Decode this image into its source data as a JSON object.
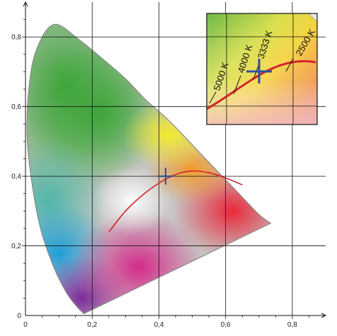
{
  "chart_data": {
    "type": "scatter",
    "title": "",
    "xlabel": "",
    "ylabel": "",
    "xlim": [
      0,
      0.9
    ],
    "ylim": [
      0,
      0.9
    ],
    "grid": true,
    "x_ticks": [
      {
        "value": 0,
        "label": "0"
      },
      {
        "value": 0.2,
        "label": "0,2"
      },
      {
        "value": 0.4,
        "label": "0,4"
      },
      {
        "value": 0.6,
        "label": "0,6"
      },
      {
        "value": 0.8,
        "label": "0,8"
      }
    ],
    "y_ticks": [
      {
        "value": 0,
        "label": "0"
      },
      {
        "value": 0.2,
        "label": "0,2"
      },
      {
        "value": 0.4,
        "label": "0,4"
      },
      {
        "value": 0.6,
        "label": "0,6"
      },
      {
        "value": 0.8,
        "label": "0,8"
      }
    ],
    "spectral_locus": {
      "x": [
        0.175,
        0.15,
        0.12,
        0.08,
        0.04,
        0.01,
        0.005,
        0.02,
        0.05,
        0.08,
        0.11,
        0.15,
        0.19,
        0.24,
        0.3,
        0.36,
        0.43,
        0.5,
        0.57,
        0.64,
        0.7,
        0.735
      ],
      "y": [
        0.005,
        0.03,
        0.07,
        0.15,
        0.27,
        0.45,
        0.58,
        0.72,
        0.8,
        0.834,
        0.83,
        0.8,
        0.77,
        0.73,
        0.68,
        0.62,
        0.56,
        0.49,
        0.42,
        0.35,
        0.29,
        0.265
      ]
    },
    "planckian_locus": {
      "x": [
        0.25,
        0.3,
        0.35,
        0.4,
        0.45,
        0.5,
        0.55,
        0.6,
        0.65
      ],
      "y": [
        0.24,
        0.3,
        0.345,
        0.38,
        0.405,
        0.415,
        0.41,
        0.395,
        0.375
      ]
    },
    "marker": {
      "x": 0.42,
      "y": 0.4
    },
    "inset": {
      "cct_labels": [
        "5000 K",
        "4000 K",
        "3333 K",
        "2500 K"
      ]
    },
    "colors": {
      "locus_line": "#d2232a",
      "marker": "#2a4fa0",
      "grid": "#111111"
    }
  }
}
